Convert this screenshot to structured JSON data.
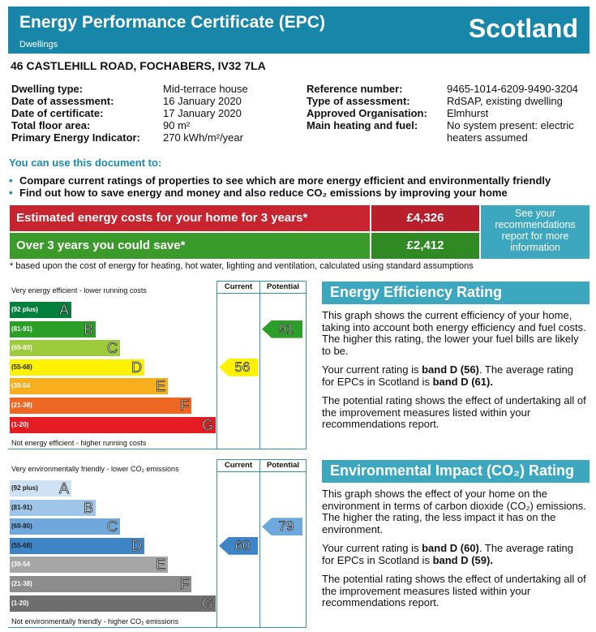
{
  "header": {
    "title": "Energy Performance Certificate (EPC)",
    "subtitle": "Dwellings",
    "region": "Scotland"
  },
  "address": "46 CASTLEHILL ROAD, FOCHABERS, IV32 7LA",
  "details": {
    "left": [
      {
        "label": "Dwelling type:",
        "value": "Mid-terrace house"
      },
      {
        "label": "Date of assessment:",
        "value": "16 January 2020"
      },
      {
        "label": "Date of certificate:",
        "value": "17 January 2020"
      },
      {
        "label": "Total floor area:",
        "value": "90 m²"
      },
      {
        "label": "Primary Energy Indicator:",
        "value": "270 kWh/m²/year"
      }
    ],
    "right": [
      {
        "label": "Reference number:",
        "value": "9465-1014-6209-9490-3204"
      },
      {
        "label": "Type of assessment:",
        "value": "RdSAP, existing dwelling"
      },
      {
        "label": "Approved Organisation:",
        "value": "Elmhurst"
      },
      {
        "label": "Main heating and fuel:",
        "value": "No system present: electric heaters assumed"
      }
    ]
  },
  "usage": {
    "heading": "You can use this document to:",
    "items": [
      "Compare current ratings of properties to see which are more energy efficient and environmentally friendly",
      "Find out how to save energy and money and also reduce CO₂ emissions by improving your home"
    ]
  },
  "costs": {
    "rows": [
      {
        "label": "Estimated energy costs for your home for 3 years*",
        "value": "£4,326"
      },
      {
        "label": "Over 3 years you could save*",
        "value": "£2,412"
      }
    ],
    "link": "See your recommendations report for more information",
    "footnote": "* based upon the cost of energy for heating, hot water, lighting and ventilation, calculated using standard assumptions"
  },
  "ratings": [
    {
      "top_label": "Very energy efficient - lower running costs",
      "bottom_label": "Not energy efficient - higher running costs",
      "columns": [
        "Current",
        "Potential"
      ],
      "bands": [
        {
          "range": "(92 plus)",
          "letter": "A"
        },
        {
          "range": "(81-91)",
          "letter": "B"
        },
        {
          "range": "(69-80)",
          "letter": "C"
        },
        {
          "range": "(55-68)",
          "letter": "D"
        },
        {
          "range": "(39-54",
          "letter": "E"
        },
        {
          "range": "(21-38)",
          "letter": "F"
        },
        {
          "range": "(1-20)",
          "letter": "G"
        }
      ],
      "current": 56,
      "potential": 91,
      "panel": {
        "title": "Energy Efficiency Rating",
        "paragraphs": [
          [
            "This graph shows the current efficiency of your home, taking into account both energy efficiency and fuel costs. The higher this rating, the lower your fuel bills are likely to be."
          ],
          [
            "Your current rating is ",
            "band D (56)",
            ". The average rating for EPCs in Scotland is ",
            "band D (61)."
          ],
          [
            "The potential rating shows the effect of undertaking all of the improvement measures listed within your recommendations report."
          ]
        ]
      }
    },
    {
      "top_label": "Very environmentally friendly - lower CO₂ emissions",
      "bottom_label": "Not environmentally friendly - higher CO₂ emissions",
      "columns": [
        "Current",
        "Potential"
      ],
      "bands": [
        {
          "range": "(92 plus)",
          "letter": "A"
        },
        {
          "range": "(81-91)",
          "letter": "B"
        },
        {
          "range": "(69-80)",
          "letter": "C"
        },
        {
          "range": "(55-68)",
          "letter": "D"
        },
        {
          "range": "(39-54",
          "letter": "E"
        },
        {
          "range": "(21-38)",
          "letter": "F"
        },
        {
          "range": "(1-20)",
          "letter": "G"
        }
      ],
      "current": 60,
      "potential": 79,
      "panel": {
        "title": "Environmental Impact (CO₂) Rating",
        "paragraphs": [
          [
            "This graph shows the effect of your home on the environment in terms of carbon dioxide (CO₂) emissions. The higher the rating, the less impact it has on the environment."
          ],
          [
            "Your current rating is ",
            "band D (60)",
            ". The average rating for EPCs in Scotland is ",
            "band D (59)."
          ],
          [
            "The potential rating shows the effect of undertaking all of the improvement measures listed within your recommendations report."
          ]
        ]
      }
    }
  ]
}
